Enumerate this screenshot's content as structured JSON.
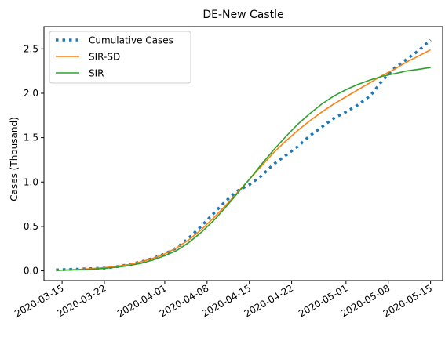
{
  "chart_data": {
    "type": "line",
    "title": "DE-New Castle",
    "xlabel": "",
    "ylabel": "Cases (Thousand)",
    "ylim": [
      -0.11,
      2.75
    ],
    "xlim": [
      "2020-03-12",
      "2020-05-17"
    ],
    "x_ticks": [
      "2020-03-15",
      "2020-03-22",
      "2020-04-01",
      "2020-04-08",
      "2020-04-15",
      "2020-04-22",
      "2020-05-01",
      "2020-05-08",
      "2020-05-15"
    ],
    "y_ticks": [
      "0.0",
      "0.5",
      "1.0",
      "1.5",
      "2.0",
      "2.5"
    ],
    "legend_position": "top-left",
    "grid": false,
    "x": [
      "2020-03-14",
      "2020-03-16",
      "2020-03-18",
      "2020-03-20",
      "2020-03-22",
      "2020-03-24",
      "2020-03-26",
      "2020-03-28",
      "2020-03-30",
      "2020-04-01",
      "2020-04-03",
      "2020-04-05",
      "2020-04-07",
      "2020-04-09",
      "2020-04-11",
      "2020-04-13",
      "2020-04-15",
      "2020-04-17",
      "2020-04-19",
      "2020-04-21",
      "2020-04-23",
      "2020-04-25",
      "2020-04-27",
      "2020-04-29",
      "2020-05-01",
      "2020-05-03",
      "2020-05-05",
      "2020-05-07",
      "2020-05-09",
      "2020-05-11",
      "2020-05-13",
      "2020-05-15"
    ],
    "series": [
      {
        "name": "Cumulative Cases",
        "color": "#1f77b4",
        "style": "dotted",
        "values": [
          0.01,
          0.015,
          0.02,
          0.025,
          0.03,
          0.045,
          0.07,
          0.1,
          0.14,
          0.19,
          0.26,
          0.37,
          0.5,
          0.64,
          0.78,
          0.9,
          0.97,
          1.07,
          1.2,
          1.3,
          1.4,
          1.52,
          1.62,
          1.72,
          1.79,
          1.87,
          1.97,
          2.14,
          2.28,
          2.38,
          2.48,
          2.6
        ]
      },
      {
        "name": "SIR-SD",
        "color": "#ff7f0e",
        "style": "solid",
        "values": [
          0.005,
          0.01,
          0.016,
          0.024,
          0.035,
          0.05,
          0.07,
          0.1,
          0.14,
          0.19,
          0.26,
          0.35,
          0.46,
          0.59,
          0.73,
          0.88,
          1.03,
          1.18,
          1.33,
          1.46,
          1.58,
          1.69,
          1.79,
          1.88,
          1.96,
          2.04,
          2.12,
          2.2,
          2.27,
          2.35,
          2.42,
          2.49
        ]
      },
      {
        "name": "SIR",
        "color": "#2ca02c",
        "style": "solid",
        "values": [
          0.005,
          0.008,
          0.012,
          0.018,
          0.027,
          0.04,
          0.058,
          0.083,
          0.12,
          0.17,
          0.23,
          0.32,
          0.43,
          0.56,
          0.71,
          0.87,
          1.03,
          1.2,
          1.36,
          1.51,
          1.65,
          1.77,
          1.88,
          1.97,
          2.04,
          2.1,
          2.15,
          2.19,
          2.22,
          2.25,
          2.27,
          2.29
        ]
      }
    ]
  }
}
